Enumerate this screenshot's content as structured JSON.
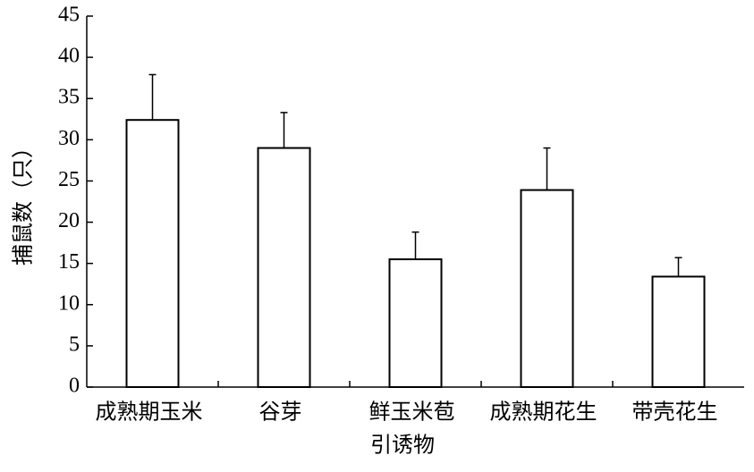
{
  "chart_data": {
    "type": "bar",
    "categories": [
      "成熟期玉米",
      "谷芽",
      "鲜玉米苞",
      "成熟期花生",
      "带壳花生"
    ],
    "values": [
      32.4,
      29.0,
      15.5,
      23.9,
      13.4
    ],
    "errors": [
      5.5,
      4.3,
      3.3,
      5.1,
      2.3
    ],
    "color": "#ffffff",
    "x_label": "引诱物",
    "y_label": "捕鼠数（只）",
    "ylim": [
      0,
      45
    ],
    "yticks": [
      0,
      5,
      10,
      15,
      20,
      25,
      30,
      35,
      40,
      45
    ],
    "grid": false
  }
}
